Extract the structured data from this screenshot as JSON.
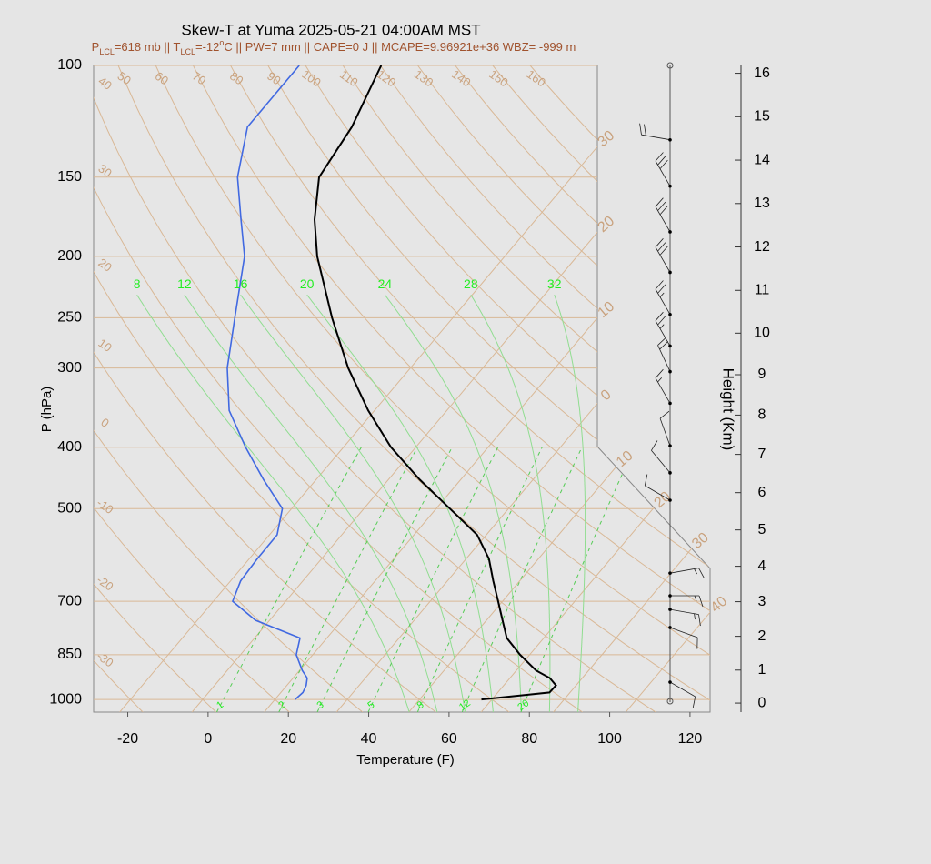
{
  "chart_data": {
    "type": "skewt",
    "title": "Skew-T at Yuma 2025-05-21 04:00AM MST",
    "subtitle": [
      {
        "text": "P"
      },
      {
        "text": "LCL",
        "shift": "sub"
      },
      {
        "text": "=618 mb || T"
      },
      {
        "text": "LCL",
        "shift": "sub"
      },
      {
        "text": "=-12"
      },
      {
        "text": "o",
        "shift": "super"
      },
      {
        "text": "C || PW=7 mm || CAPE=0 J || MCAPE=9.96921e+36 WBZ= -999 m"
      }
    ],
    "xlabel": "Temperature (F)",
    "ylabel": "P (hPa)",
    "y2label": "Height (Km)",
    "xlim": [
      -28.5,
      125
    ],
    "xticks": [
      -20,
      0,
      20,
      40,
      60,
      80,
      100,
      120
    ],
    "ylim": [
      1047,
      100
    ],
    "ylog": true,
    "yticks": [
      100,
      150,
      200,
      250,
      300,
      400,
      500,
      700,
      850,
      1000
    ],
    "y2ticks": [
      0,
      1,
      2,
      3,
      4,
      5,
      6,
      7,
      8,
      9,
      10,
      11,
      12,
      13,
      14,
      15,
      16
    ],
    "levels": [
      1000,
      975,
      950,
      925,
      900,
      850,
      800,
      750,
      700,
      650,
      600,
      550,
      500,
      450,
      400,
      350,
      300,
      250,
      200,
      175,
      150,
      125,
      100
    ],
    "series": [
      {
        "color": "#000000",
        "values": [
          65.4,
          80.9,
          81.0,
          77.9,
          72.9,
          65.6,
          58.8,
          54.0,
          48.9,
          43.4,
          37.7,
          29.7,
          17.4,
          3.8,
          -10.2,
          -23.6,
          -37.5,
          -52.1,
          -68.7,
          -77.1,
          -84.9,
          -87.3,
          -92.9
        ]
      },
      {
        "color": "#4169e1",
        "values": [
          19.0,
          19.5,
          18.8,
          17.5,
          14.7,
          9.9,
          7.3,
          -7.5,
          -17.2,
          -19.5,
          -20.0,
          -20.1,
          -24.3,
          -35.1,
          -46.4,
          -58.2,
          -67.6,
          -76.3,
          -86.8,
          -95.4,
          -105.2,
          -113.3,
          -113.3
        ]
      }
    ],
    "isotherms": [
      {
        "value": -30,
        "label": "30"
      },
      {
        "value": -20,
        "label": "20"
      },
      {
        "value": -10,
        "label": "10"
      },
      {
        "value": 0,
        "label": "0"
      },
      {
        "value": 10,
        "label": "10"
      },
      {
        "value": 20,
        "label": "20"
      },
      {
        "value": 30,
        "label": "30"
      },
      {
        "value": 40,
        "label": "40"
      }
    ],
    "dry_adiabats": [
      -30,
      -20,
      -10,
      0,
      10,
      20,
      30,
      40,
      50,
      60,
      70,
      80,
      90,
      100,
      110,
      120,
      130,
      140,
      150,
      160
    ],
    "moist_adiabats": [
      8,
      12,
      16,
      20,
      24,
      28,
      32
    ],
    "mixing_ratios": [
      1,
      2,
      3,
      5,
      8,
      12,
      20
    ],
    "winds": {
      "pressure": [
        131,
        155,
        183,
        212,
        247,
        277,
        304,
        341,
        398,
        439,
        485,
        632,
        686,
        721,
        770,
        939
      ],
      "direction": [
        280,
        330,
        330,
        330,
        330,
        330,
        335,
        330,
        340,
        320,
        300,
        80,
        90,
        100,
        110,
        120
      ],
      "speed": [
        20,
        30,
        30,
        30,
        25,
        25,
        20,
        15,
        10,
        10,
        10,
        15,
        15,
        15,
        10,
        10
      ]
    }
  }
}
